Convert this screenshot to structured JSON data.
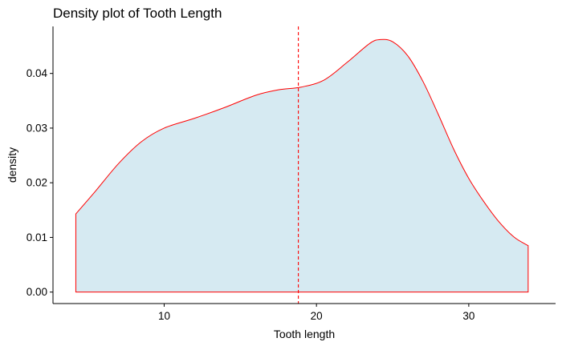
{
  "chart_data": {
    "type": "area",
    "title": "Density plot of Tooth Length",
    "xlabel": "Tooth length",
    "ylabel": "density",
    "xlim": [
      2.7,
      35.7
    ],
    "ylim": [
      -0.0021,
      0.0486
    ],
    "x_ticks": [
      10,
      20,
      30
    ],
    "x_tick_labels": [
      "10",
      "20",
      "30"
    ],
    "y_ticks": [
      0.0,
      0.01,
      0.02,
      0.03,
      0.04
    ],
    "y_tick_labels": [
      "0.00",
      "0.01",
      "0.02",
      "0.03",
      "0.04"
    ],
    "grid": false,
    "legend": "none",
    "series": [
      {
        "x": [
          4.2,
          5.5,
          7.0,
          8.5,
          10.0,
          12.0,
          14.0,
          16.0,
          17.5,
          19.0,
          20.5,
          22.0,
          23.5,
          24.2,
          25.0,
          26.0,
          27.0,
          28.0,
          29.0,
          30.0,
          31.0,
          32.0,
          33.0,
          33.9
        ],
        "y": [
          0.0143,
          0.0185,
          0.0235,
          0.0275,
          0.03,
          0.0318,
          0.0338,
          0.036,
          0.037,
          0.0375,
          0.0388,
          0.042,
          0.0455,
          0.0462,
          0.0458,
          0.0432,
          0.0385,
          0.0325,
          0.0262,
          0.0208,
          0.0165,
          0.0128,
          0.01,
          0.0085
        ]
      }
    ],
    "vline": {
      "x": 18.81
    },
    "colors": {
      "fill": "#d6eaf2",
      "line": "#ff0000",
      "vline": "#ff0000",
      "axis": "#000000"
    }
  }
}
